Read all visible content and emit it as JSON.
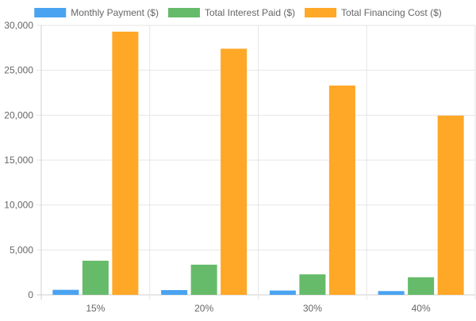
{
  "chart_data": {
    "type": "bar",
    "categories": [
      "15%",
      "20%",
      "30%",
      "40%"
    ],
    "series": [
      {
        "name": "Monthly Payment ($)",
        "color": "#4aa3f0",
        "values": [
          560,
          530,
          480,
          420
        ]
      },
      {
        "name": "Total Interest Paid ($)",
        "color": "#66bb6a",
        "values": [
          3800,
          3360,
          2280,
          1960
        ]
      },
      {
        "name": "Total Financing Cost ($)",
        "color": "#ffa726",
        "values": [
          29300,
          27400,
          23300,
          19950
        ]
      }
    ],
    "ylim": [
      0,
      30000
    ],
    "y_ticks": [
      "0",
      "5,000",
      "10,000",
      "15,000",
      "20,000",
      "25,000",
      "30,000"
    ],
    "y_tick_values": [
      0,
      5000,
      10000,
      15000,
      20000,
      25000,
      30000
    ],
    "grid": true,
    "legend_position": "top"
  }
}
